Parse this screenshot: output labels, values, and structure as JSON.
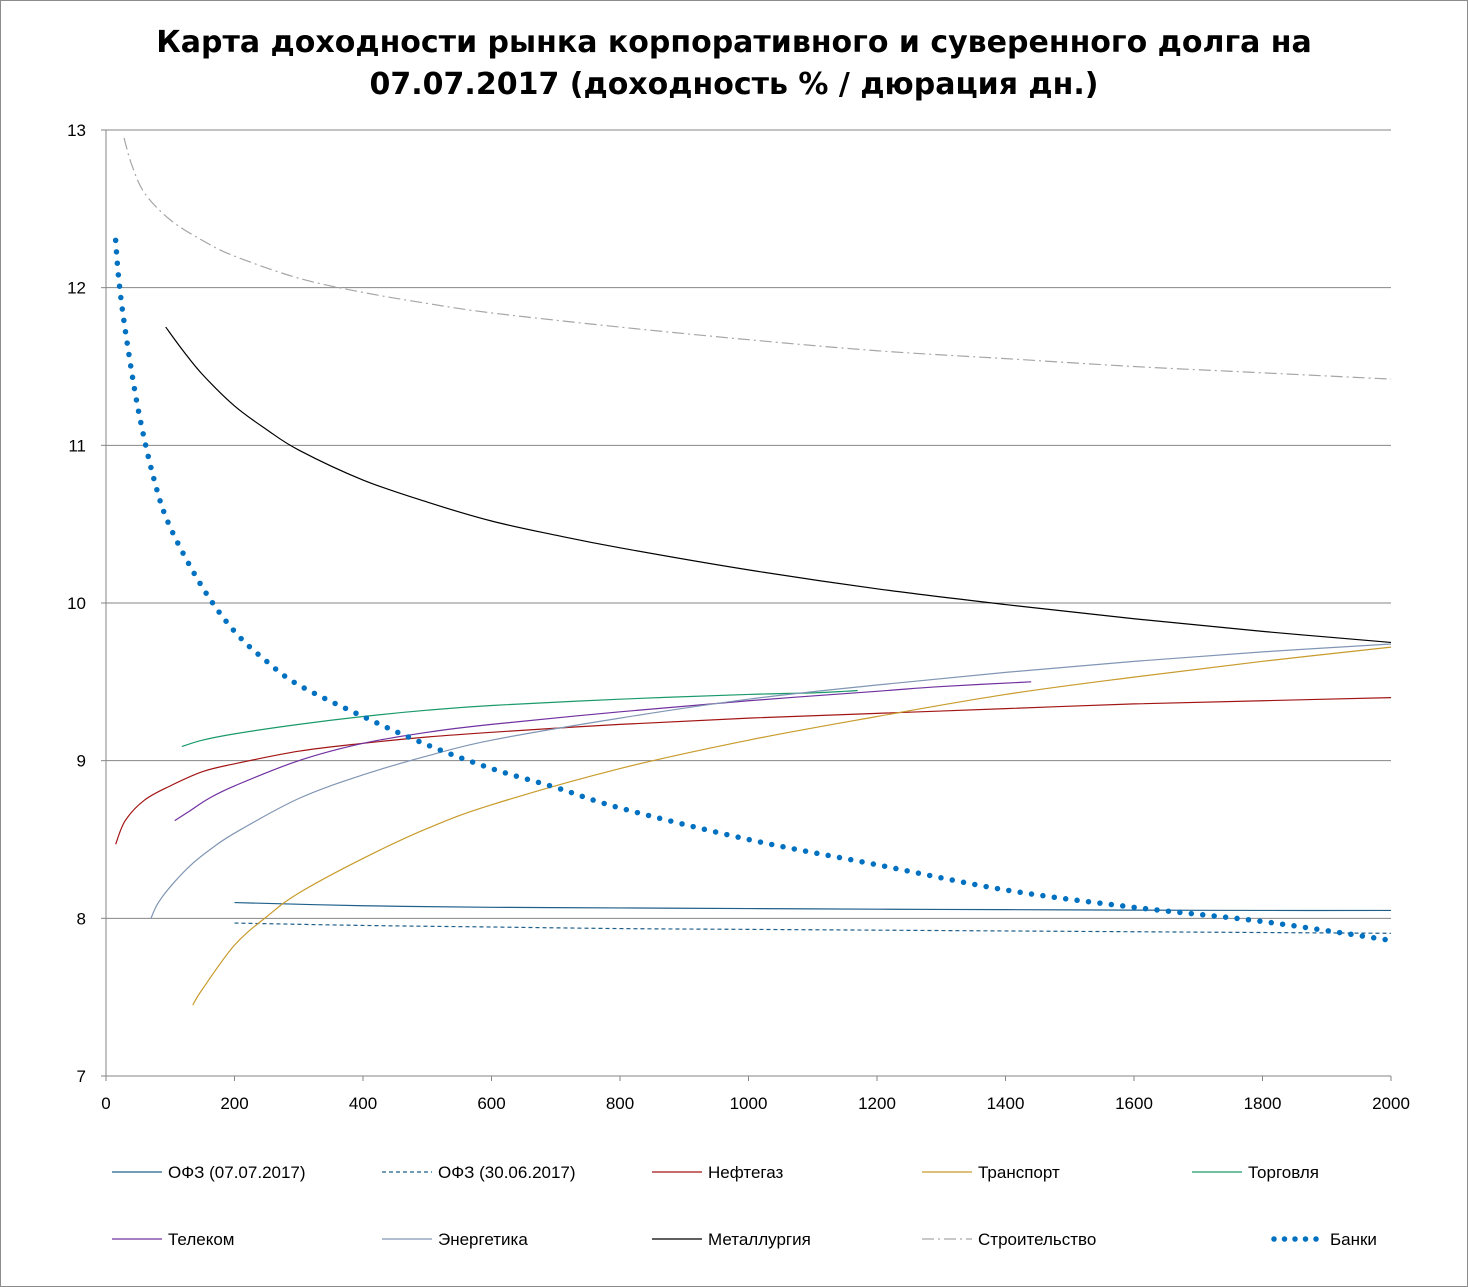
{
  "chart_data": {
    "type": "line",
    "title_line1": "Карта доходности рынка корпоративного и суверенного долга на",
    "title_line2": "07.07.2017 (доходность % / дюрация дн.)",
    "xlim": [
      0,
      2000
    ],
    "ylim": [
      7,
      13
    ],
    "x_ticks": [
      0,
      200,
      400,
      600,
      800,
      1000,
      1200,
      1400,
      1600,
      1800,
      2000
    ],
    "y_ticks": [
      7,
      8,
      9,
      10,
      11,
      12,
      13
    ],
    "grid": "horizontal",
    "legend_position": "bottom",
    "series": [
      {
        "name": "ОФЗ (07.07.2017)",
        "color": "#1f5f8b",
        "style": "solid",
        "width": 1.2,
        "x": [
          200,
          400,
          600,
          800,
          1000,
          1200,
          1400,
          1600,
          1800,
          2000
        ],
        "y": [
          8.1,
          8.08,
          8.07,
          8.066,
          8.062,
          8.058,
          8.055,
          8.052,
          8.05,
          8.05
        ]
      },
      {
        "name": "ОФЗ (30.06.2017)",
        "color": "#1f5f8b",
        "style": "dashed",
        "width": 1.2,
        "x": [
          200,
          400,
          600,
          800,
          1000,
          1200,
          1400,
          1600,
          1800,
          2000
        ],
        "y": [
          7.97,
          7.955,
          7.945,
          7.935,
          7.93,
          7.925,
          7.92,
          7.915,
          7.91,
          7.905
        ]
      },
      {
        "name": "Нефтегаз",
        "color": "#a31515",
        "style": "solid",
        "width": 1.2,
        "x": [
          15,
          30,
          60,
          100,
          150,
          200,
          300,
          400,
          500,
          600,
          800,
          1000,
          1200,
          1400,
          1600,
          1800,
          2000
        ],
        "y": [
          8.47,
          8.62,
          8.75,
          8.84,
          8.93,
          8.98,
          9.06,
          9.11,
          9.15,
          9.18,
          9.23,
          9.27,
          9.3,
          9.33,
          9.36,
          9.38,
          9.4
        ]
      },
      {
        "name": "Транспорт",
        "color": "#c89b2c",
        "style": "solid",
        "width": 1.2,
        "x": [
          135,
          150,
          200,
          250,
          300,
          400,
          500,
          600,
          800,
          1000,
          1200,
          1400,
          1600,
          1800,
          2000
        ],
        "y": [
          7.45,
          7.55,
          7.83,
          8.01,
          8.16,
          8.38,
          8.57,
          8.72,
          8.95,
          9.13,
          9.28,
          9.42,
          9.53,
          9.63,
          9.72
        ]
      },
      {
        "name": "Торговля",
        "color": "#1a9a6a",
        "style": "solid",
        "width": 1.2,
        "x": [
          118,
          150,
          200,
          300,
          400,
          500,
          600,
          800,
          1000,
          1100,
          1150,
          1170
        ],
        "y": [
          9.09,
          9.13,
          9.17,
          9.23,
          9.28,
          9.32,
          9.35,
          9.39,
          9.42,
          9.43,
          9.44,
          9.445
        ]
      },
      {
        "name": "Телеком",
        "color": "#7030a0",
        "style": "solid",
        "width": 1.2,
        "x": [
          107,
          130,
          160,
          200,
          300,
          400,
          500,
          600,
          800,
          1000,
          1200,
          1300,
          1440
        ],
        "y": [
          8.62,
          8.68,
          8.76,
          8.84,
          9.0,
          9.11,
          9.18,
          9.23,
          9.31,
          9.38,
          9.44,
          9.47,
          9.5
        ]
      },
      {
        "name": "Энергетика",
        "color": "#8096b4",
        "style": "solid",
        "width": 1.2,
        "x": [
          70,
          80,
          100,
          130,
          160,
          200,
          300,
          400,
          500,
          600,
          800,
          1000,
          1200,
          1400,
          1600,
          1800,
          2000
        ],
        "y": [
          8.0,
          8.09,
          8.2,
          8.33,
          8.43,
          8.54,
          8.76,
          8.91,
          9.03,
          9.13,
          9.27,
          9.39,
          9.48,
          9.56,
          9.63,
          9.69,
          9.74
        ]
      },
      {
        "name": "Металлургия",
        "color": "#000000",
        "style": "solid",
        "width": 1.2,
        "x": [
          93,
          120,
          150,
          200,
          250,
          300,
          400,
          500,
          600,
          700,
          800,
          1000,
          1200,
          1400,
          1600,
          1800,
          2000
        ],
        "y": [
          11.75,
          11.6,
          11.45,
          11.25,
          11.1,
          10.97,
          10.78,
          10.64,
          10.52,
          10.43,
          10.35,
          10.21,
          10.09,
          9.99,
          9.9,
          9.82,
          9.75
        ]
      },
      {
        "name": "Строительство",
        "color": "#a6a6a6",
        "style": "dashdot",
        "width": 1.2,
        "x": [
          28,
          40,
          60,
          100,
          150,
          200,
          300,
          400,
          500,
          600,
          800,
          1000,
          1200,
          1400,
          1600,
          1800,
          2000
        ],
        "y": [
          12.95,
          12.78,
          12.6,
          12.43,
          12.3,
          12.2,
          12.06,
          11.97,
          11.9,
          11.84,
          11.75,
          11.67,
          11.6,
          11.55,
          11.5,
          11.46,
          11.42
        ]
      },
      {
        "name": "Банки",
        "color": "#0070c0",
        "style": "dotted",
        "width": 5.5,
        "x": [
          15,
          20,
          30,
          50,
          75,
          100,
          150,
          200,
          250,
          300,
          400,
          500,
          600,
          700,
          800,
          1000,
          1200,
          1400,
          1600,
          1800,
          2000
        ],
        "y": [
          12.3,
          12.05,
          11.73,
          11.23,
          10.78,
          10.48,
          10.1,
          9.82,
          9.63,
          9.48,
          9.28,
          9.1,
          8.95,
          8.83,
          8.7,
          8.5,
          8.34,
          8.18,
          8.07,
          7.98,
          7.86
        ]
      }
    ]
  }
}
